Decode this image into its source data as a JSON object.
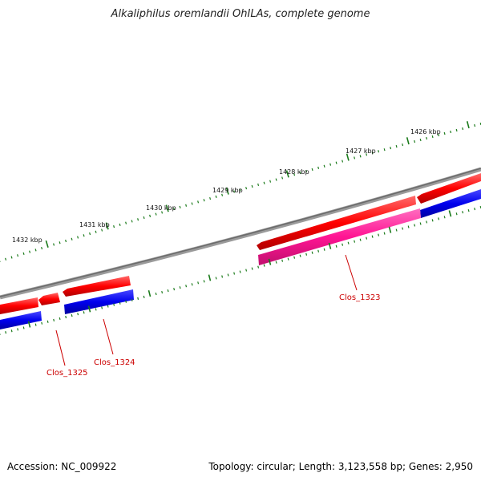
{
  "title": "Alkaliphilus oremlandii OhILAs, complete genome",
  "footer": {
    "accession": "Accession: NC_009922",
    "summary": "Topology: circular; Length: 3,123,558 bp; Genes: 2,950"
  },
  "outer_ruler": {
    "labels": [
      "1426 kbp",
      "1427 kbp",
      "1428 kbp",
      "1429 kbp",
      "1430 kbp",
      "1431 kbp",
      "1432 kbp"
    ]
  },
  "genes": [
    {
      "name": "Clos_1323",
      "color": "#ff1493"
    },
    {
      "name": "Clos_1324",
      "color": "#0000ee"
    },
    {
      "name": "Clos_1325",
      "color": "#ff0000"
    }
  ],
  "colors": {
    "backbone": "#808080",
    "tick": "#1a7a1a",
    "forward_cds": "#ff0000",
    "reverse_cds": "#0000ee",
    "highlight_cds": "#ff1493",
    "label": "#cc0000"
  }
}
